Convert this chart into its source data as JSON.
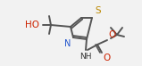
{
  "bg_color": "#f2f2f2",
  "line_color": "#555555",
  "N_color": "#2255cc",
  "O_color": "#cc2200",
  "S_color": "#bb8800",
  "line_width": 1.4,
  "font_size": 7.5,
  "figsize": [
    1.59,
    0.74
  ],
  "dpi": 100,
  "xlim": [
    0,
    159
  ],
  "ylim": [
    0,
    74
  ]
}
